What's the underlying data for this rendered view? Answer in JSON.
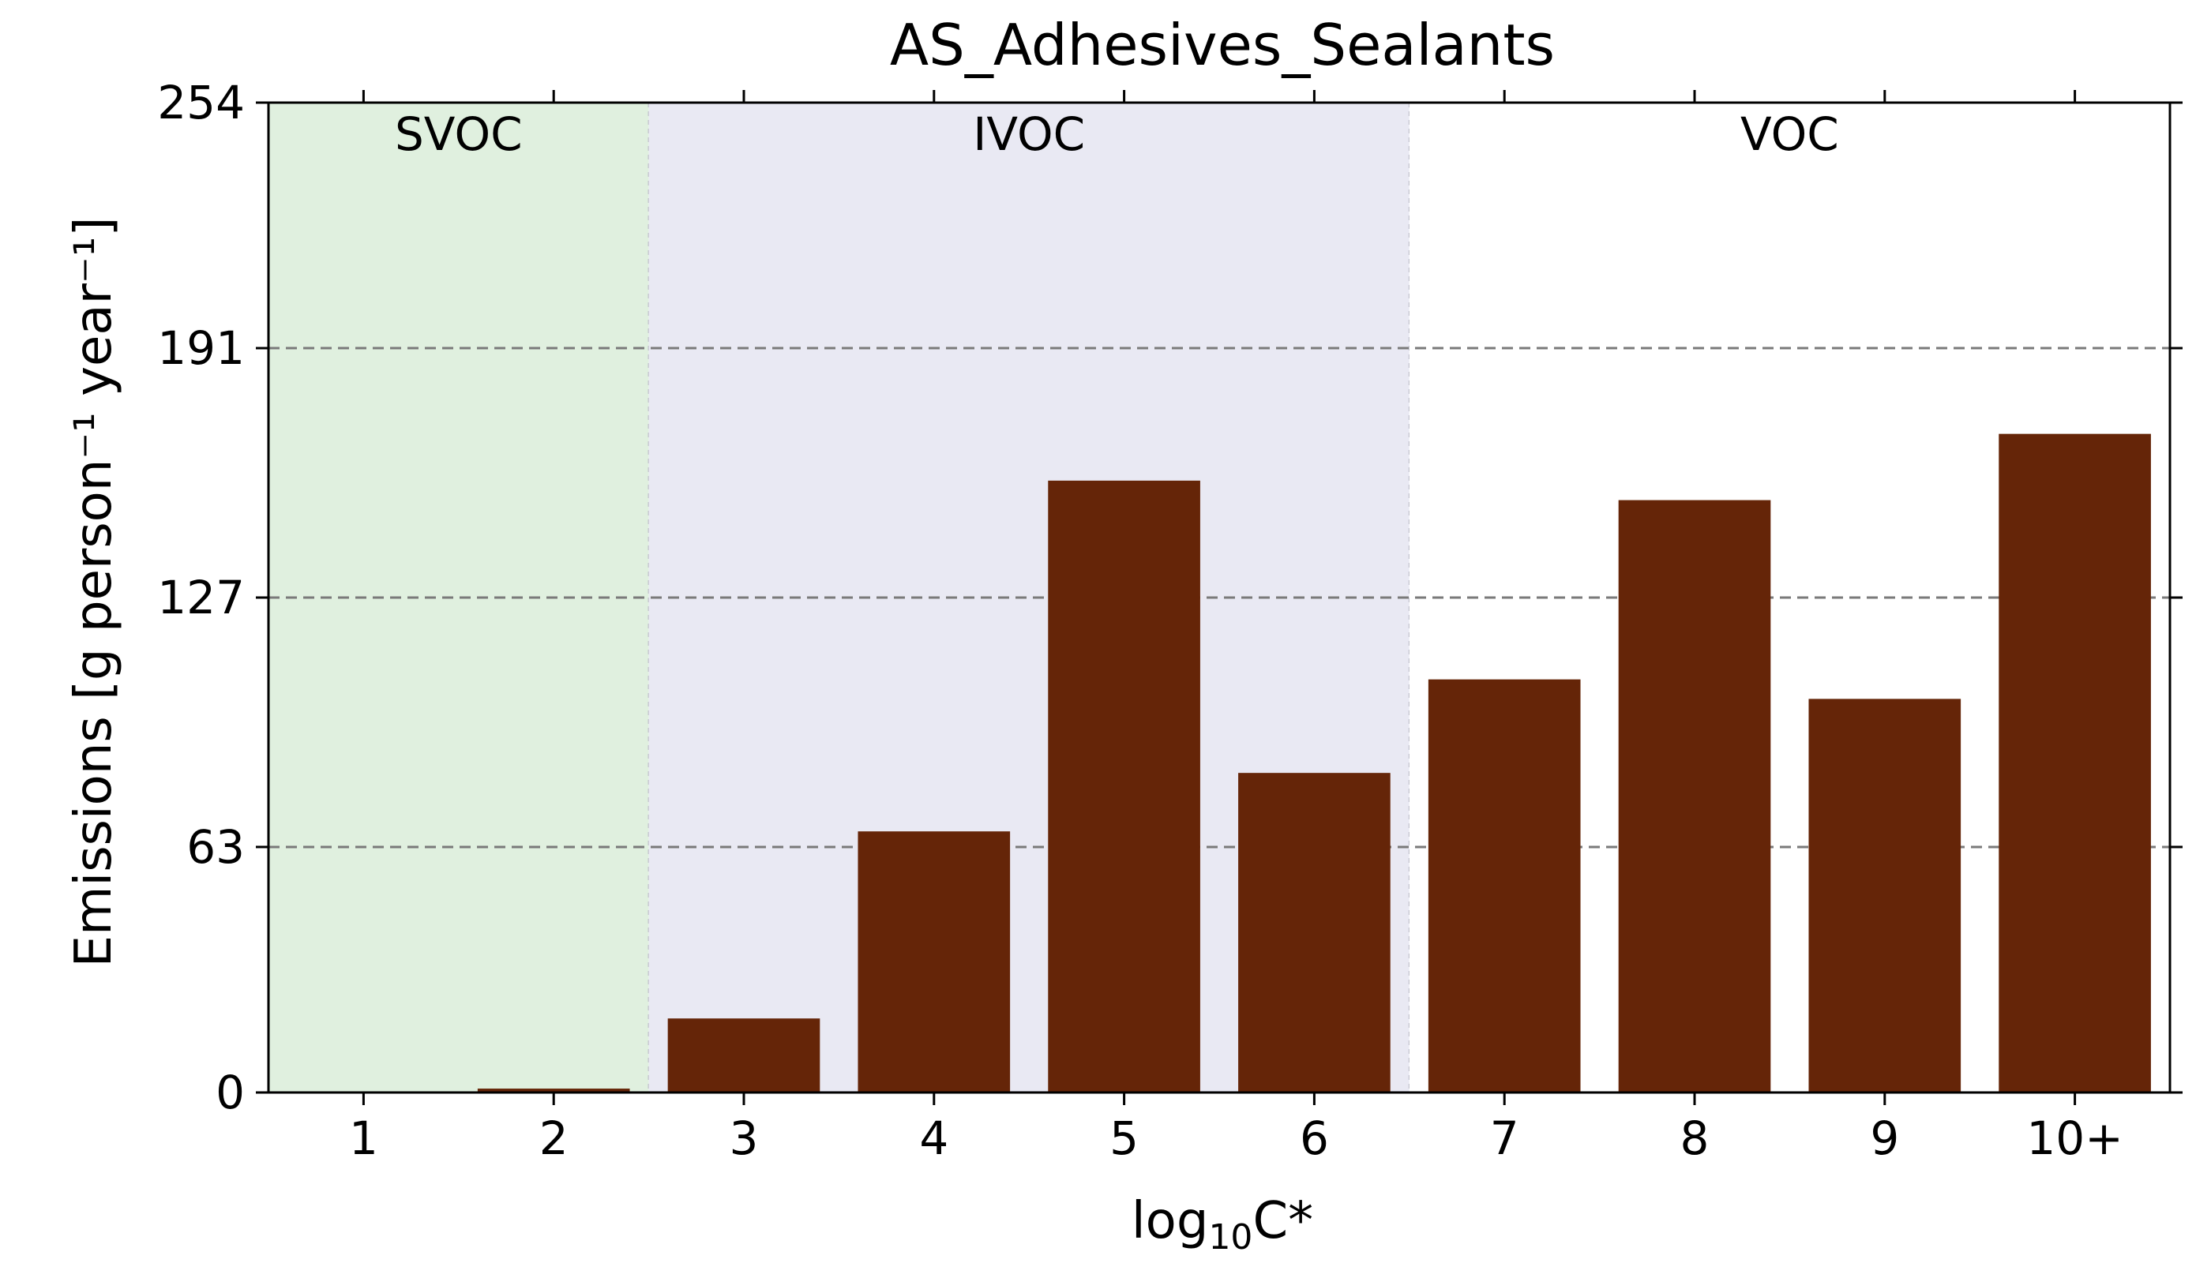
{
  "chart_data": {
    "type": "bar",
    "title": "AS_Adhesives_Sealants",
    "xlabel_main": "log",
    "xlabel_sub": "10",
    "xlabel_tail": "C*",
    "ylabel": "Emissions [g person⁻¹ year⁻¹]",
    "categories": [
      "1",
      "2",
      "3",
      "4",
      "5",
      "6",
      "7",
      "8",
      "9",
      "10+"
    ],
    "values": [
      0,
      1,
      19,
      67,
      157,
      82,
      106,
      152,
      101,
      169
    ],
    "ylim": [
      0,
      254
    ],
    "yticks": [
      0,
      63,
      127,
      191,
      254
    ],
    "bar_color": "#652508",
    "grid": "horizontal dashed",
    "regions": [
      {
        "label": "SVOC",
        "from": 0.5,
        "to": 2.5,
        "color": "#e0f0df"
      },
      {
        "label": "IVOC",
        "from": 2.5,
        "to": 6.5,
        "color": "#e9e9f3"
      },
      {
        "label": "VOC",
        "from": 6.5,
        "to": 10.5,
        "color": "#ffffff"
      }
    ]
  }
}
